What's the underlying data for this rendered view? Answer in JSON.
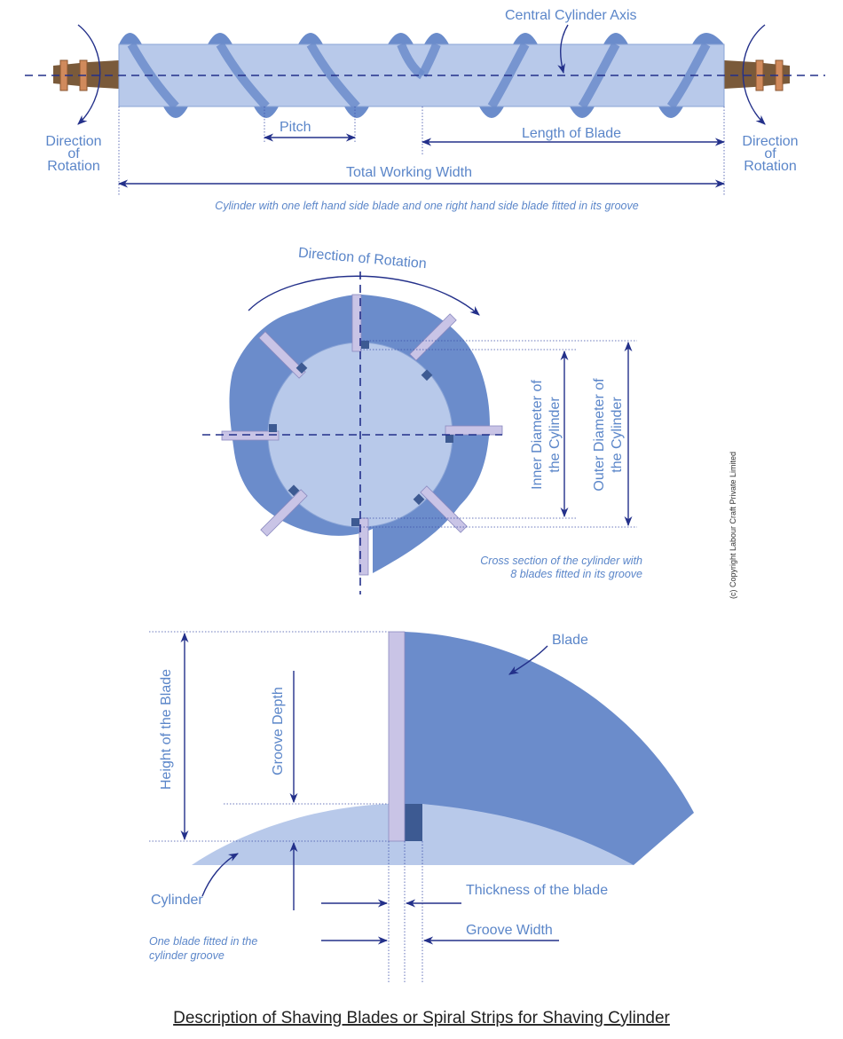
{
  "colors": {
    "cylinder_light": "#b8c9ea",
    "blade_dark": "#6b8ccb",
    "blade_strip": "#c9c4e6",
    "groove": "#3d5a92",
    "arrow": "#23308a",
    "text": "#5b86c9",
    "shaft": "#7a5a3a",
    "collar": "#d08a5c"
  },
  "top": {
    "axis_label": "Central Cylinder Axis",
    "rotation_left": [
      "Direction",
      "of",
      "Rotation"
    ],
    "rotation_right": [
      "Direction",
      "of",
      "Rotation"
    ],
    "pitch": "Pitch",
    "length_of_blade": "Length of Blade",
    "total_width": "Total Working Width",
    "caption": "Cylinder with one left hand side blade and one right hand side blade fitted in its groove"
  },
  "middle": {
    "direction": "Direction of Rotation",
    "inner": [
      "Inner Diameter of",
      "the Cylinder"
    ],
    "outer": [
      "Outer Diameter of",
      "the Cylinder"
    ],
    "caption": [
      "Cross section of the cylinder with",
      "8 blades fitted in its groove"
    ],
    "copyright": "(c) Copyright Labour Craft Private Limited"
  },
  "bottom": {
    "blade": "Blade",
    "height": "Height of the Blade",
    "groove_depth": "Groove Depth",
    "cylinder": "Cylinder",
    "thickness": "Thickness of the blade",
    "groove_width": "Groove Width",
    "caption": [
      "One blade fitted in the",
      "cylinder groove"
    ]
  },
  "title": "Description of Shaving Blades or Spiral Strips for Shaving Cylinder"
}
